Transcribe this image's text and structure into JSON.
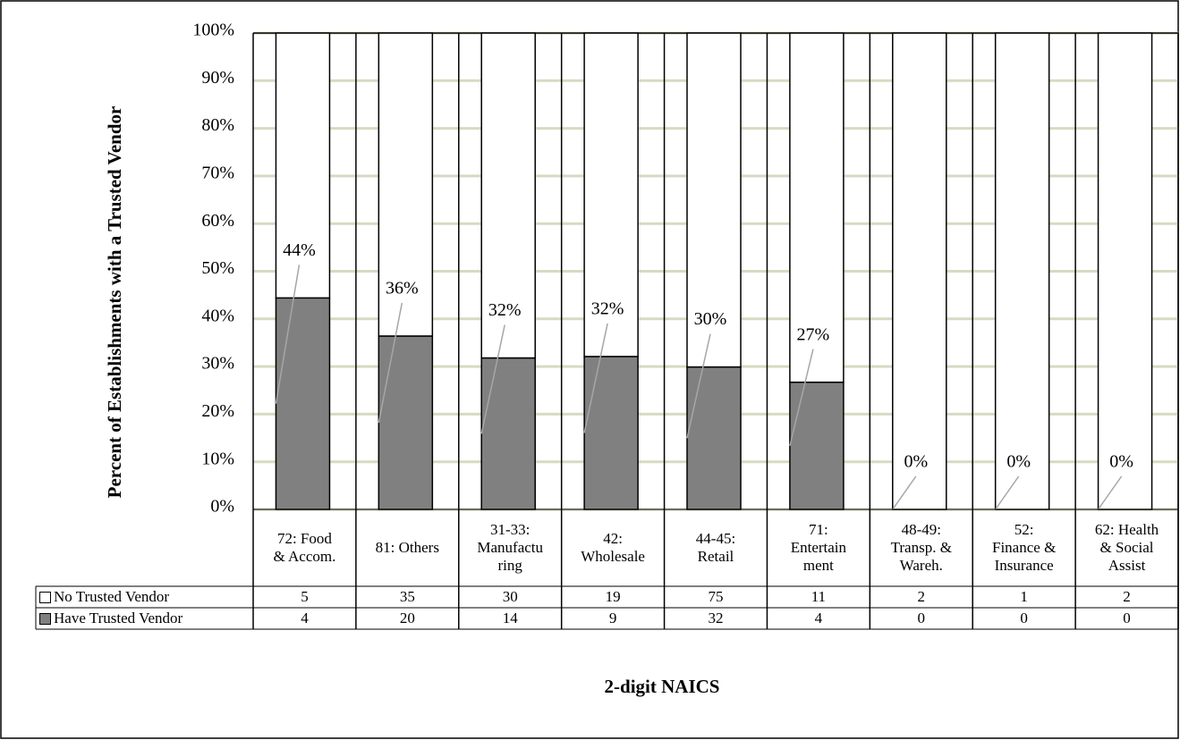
{
  "chart_data": {
    "type": "stacked_bar",
    "y_label": "Percent of Establishments with a Trusted Vendor",
    "x_label": "2-digit NAICS",
    "categories": [
      "72: Food\n& Accom.",
      "81: Others",
      "31-33:\nManufactu\nring",
      "42:\nWholesale",
      "44-45:\nRetail",
      "71:\nEntertain\nment",
      "48-49:\nTransp. &\nWareh.",
      "52:\nFinance &\nInsurance",
      "62: Health\n& Social\nAssist"
    ],
    "series": [
      {
        "name": "No Trusted Vendor",
        "color": "#ffffff",
        "values": [
          55.6,
          63.6,
          68.2,
          67.9,
          70.1,
          73.3,
          100,
          100,
          100
        ],
        "counts": [
          5,
          35,
          30,
          19,
          75,
          11,
          2,
          1,
          2
        ]
      },
      {
        "name": "Have Trusted Vendor",
        "color": "#808080",
        "values": [
          44.4,
          36.4,
          31.8,
          32.1,
          29.9,
          26.7,
          0,
          0,
          0
        ],
        "value_labels": [
          "44%",
          "36%",
          "32%",
          "32%",
          "30%",
          "27%",
          "0%",
          "0%",
          "0%"
        ],
        "counts": [
          4,
          20,
          14,
          9,
          32,
          4,
          0,
          0,
          0
        ]
      }
    ],
    "ylim": [
      0,
      100
    ],
    "yticks": [
      {
        "value": 0,
        "label": "0%"
      },
      {
        "value": 10,
        "label": "10%"
      },
      {
        "value": 20,
        "label": "20%"
      },
      {
        "value": 30,
        "label": "30%"
      },
      {
        "value": 40,
        "label": "40%"
      },
      {
        "value": 50,
        "label": "50%"
      },
      {
        "value": 60,
        "label": "60%"
      },
      {
        "value": 70,
        "label": "70%"
      },
      {
        "value": 80,
        "label": "80%"
      },
      {
        "value": 90,
        "label": "90%"
      },
      {
        "value": 100,
        "label": "100%"
      }
    ],
    "grid": true,
    "grid_color": "#d9d9c3"
  }
}
